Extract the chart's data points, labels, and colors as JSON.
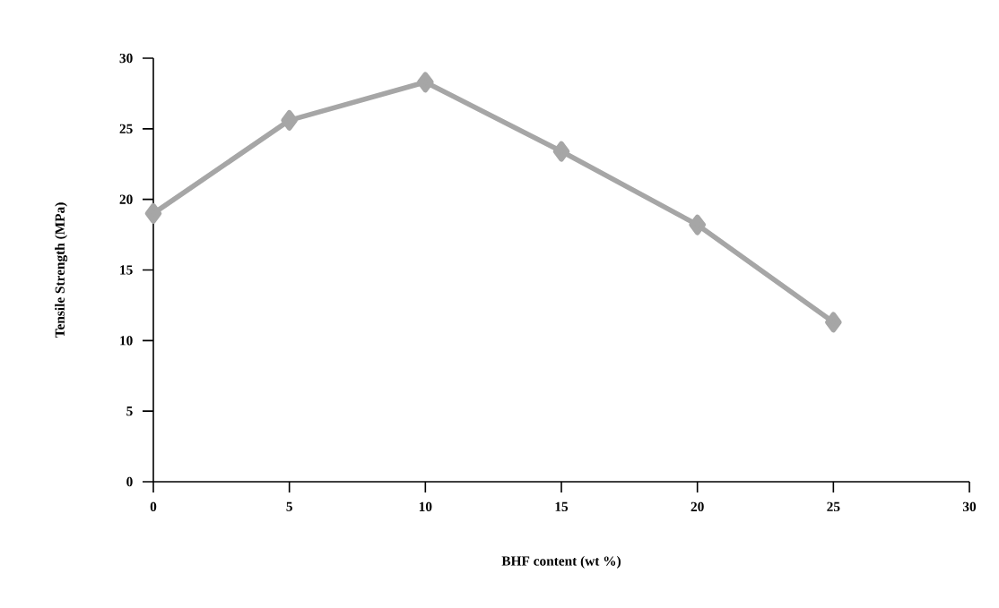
{
  "chart_data": {
    "type": "line",
    "xlabel": "BHF content (wt %)",
    "ylabel": "Tensile Strength (MPa)",
    "x": [
      0,
      5,
      10,
      15,
      20,
      25
    ],
    "series": [
      {
        "color": "#a6a6a6",
        "values": [
          19.0,
          25.6,
          28.3,
          23.4,
          18.2,
          11.3
        ]
      }
    ],
    "xlim": [
      0,
      30
    ],
    "xticks": [
      0,
      5,
      10,
      15,
      20,
      25,
      30
    ],
    "ylim": [
      0,
      30
    ],
    "yticks": [
      0,
      5,
      10,
      15,
      20,
      25,
      30
    ],
    "marker": "diamond",
    "line_style": "solid"
  }
}
